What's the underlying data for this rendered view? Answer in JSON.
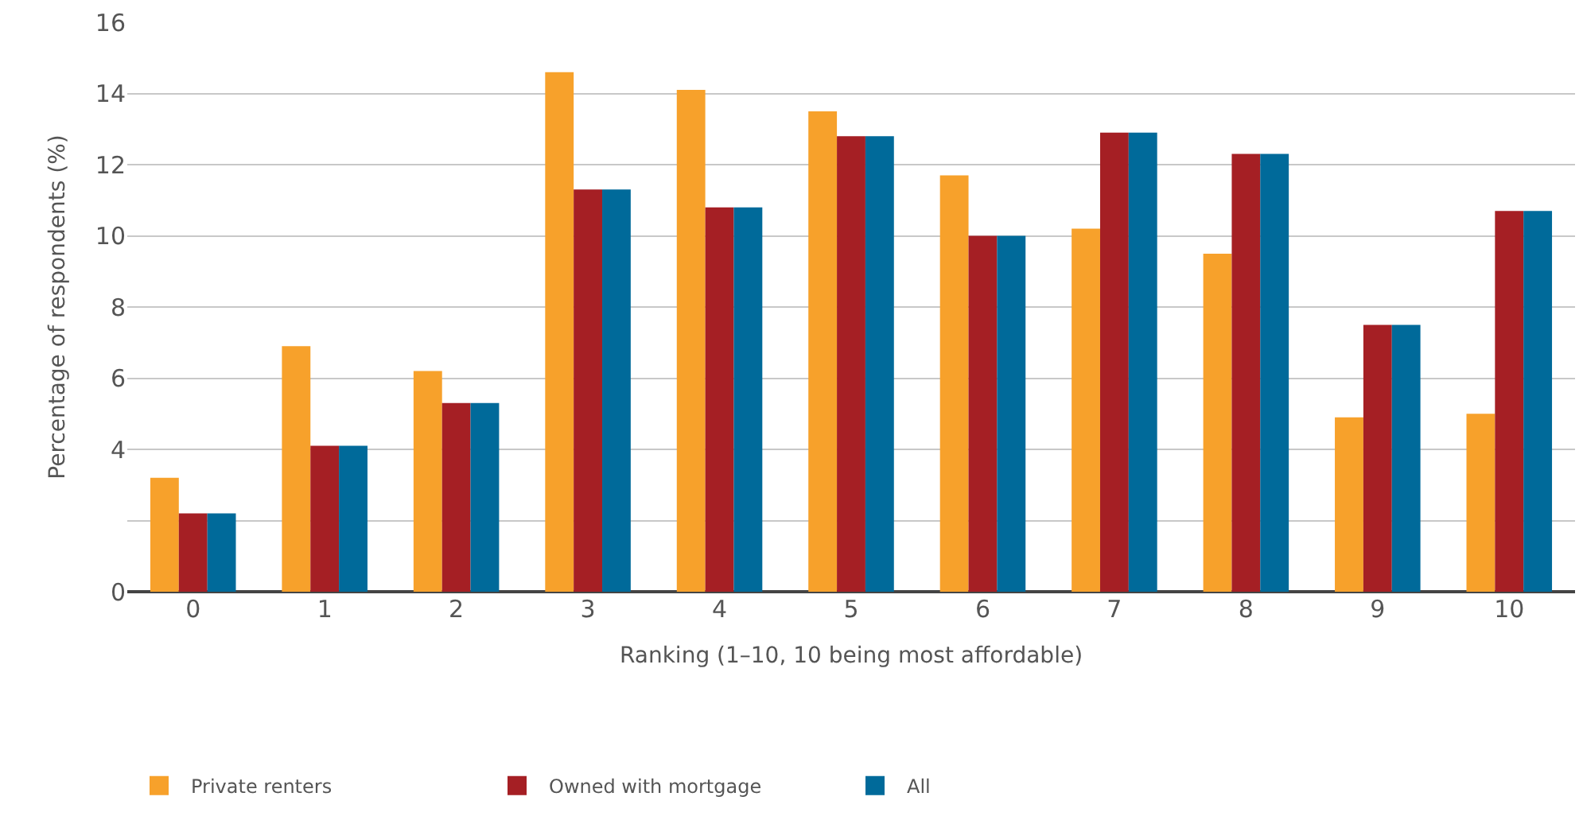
{
  "chart_data": {
    "type": "bar",
    "xlabel": "Ranking (1–10, 10 being most affordable)",
    "ylabel": "Percentage of respondents (%)",
    "categories": [
      "0",
      "1",
      "2",
      "3",
      "4",
      "5",
      "6",
      "7",
      "8",
      "9",
      "10"
    ],
    "series": [
      {
        "name": "Private renters",
        "color": "#f7a12b",
        "values": [
          3.2,
          6.9,
          6.2,
          14.6,
          14.1,
          13.5,
          11.7,
          10.2,
          9.5,
          4.9,
          5.0
        ]
      },
      {
        "name": "Owned with mortgage",
        "color": "#a51f24",
        "values": [
          2.2,
          4.1,
          5.3,
          11.3,
          10.8,
          12.8,
          10.0,
          12.9,
          12.3,
          7.5,
          10.7
        ]
      },
      {
        "name": "All",
        "color": "#006a9a",
        "values": [
          2.2,
          4.1,
          5.3,
          11.3,
          10.8,
          12.8,
          10.0,
          12.9,
          12.3,
          7.5,
          10.7
        ]
      }
    ],
    "ylim": [
      0,
      16
    ],
    "yticks": [
      0,
      {
        "value": 2,
        "label": null
      },
      4,
      6,
      8,
      10,
      12,
      14,
      16
    ],
    "grid": "y",
    "legend": "bottom left"
  }
}
